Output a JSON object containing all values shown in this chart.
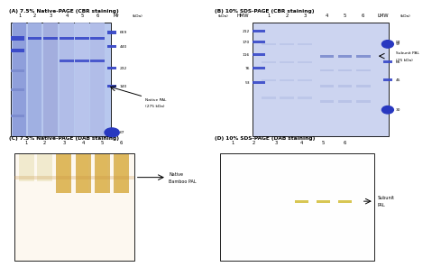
{
  "title_A": "(A) 7.5% Native-PAGE (CBR staining)",
  "title_B": "(B) 10% SDS-PAGE (CBR staining)",
  "title_C": "(C) 7.5% Native-PAGE (DAB staining)",
  "title_D": "(D) 10% SDS-PAGE (DAB staining)",
  "bg_color": "#ffffff",
  "lane_labels_6": [
    "1",
    "2",
    "3",
    "4",
    "5",
    "6"
  ],
  "marker_labels_A": [
    "669",
    "440",
    "232",
    "140",
    "67"
  ],
  "marker_labels_B_left": [
    "212",
    "170",
    "116",
    "76",
    "53"
  ],
  "marker_labels_B_right": [
    "97",
    "66",
    "45",
    "30"
  ],
  "Mr_label": "Mr",
  "HMW_label": "HMW",
  "LMW_label": "LMW",
  "kDa_label": "(kDa)",
  "annotation_A_line1": "Native PAL",
  "annotation_A_line2": "(275 kDa)",
  "annotation_B_line1": "Subunit PAL",
  "annotation_B_line2": "(75 kDa)",
  "annotation_C_line1": "Native",
  "annotation_C_line2": "Bamboo PAL",
  "annotation_D_line1": "Subunit",
  "annotation_D_line2": "PAL",
  "gel_A_bg": "#b8c8ee",
  "gel_B_bg": "#ccd4f0",
  "gel_C_bg": "#fdf8f0",
  "gel_D_bg": "#fefefe",
  "band_blue_dark": "#3848c8",
  "band_blue_med": "#7888cc",
  "band_blue_light": "#a8b4e0",
  "band_orange_dark": "#c89040",
  "band_orange_light": "#e8d090",
  "band_yellow": "#d4c040",
  "marker_dot_color": "#2838c0",
  "lane_A_colors": [
    "#8898d8",
    "#9cace0",
    "#a0aadc",
    "#b0bce8",
    "#b8c4ec",
    "#b0bce8"
  ],
  "lane_C_light": "#f0e8c8",
  "lane_C_dark": "#d4a840"
}
